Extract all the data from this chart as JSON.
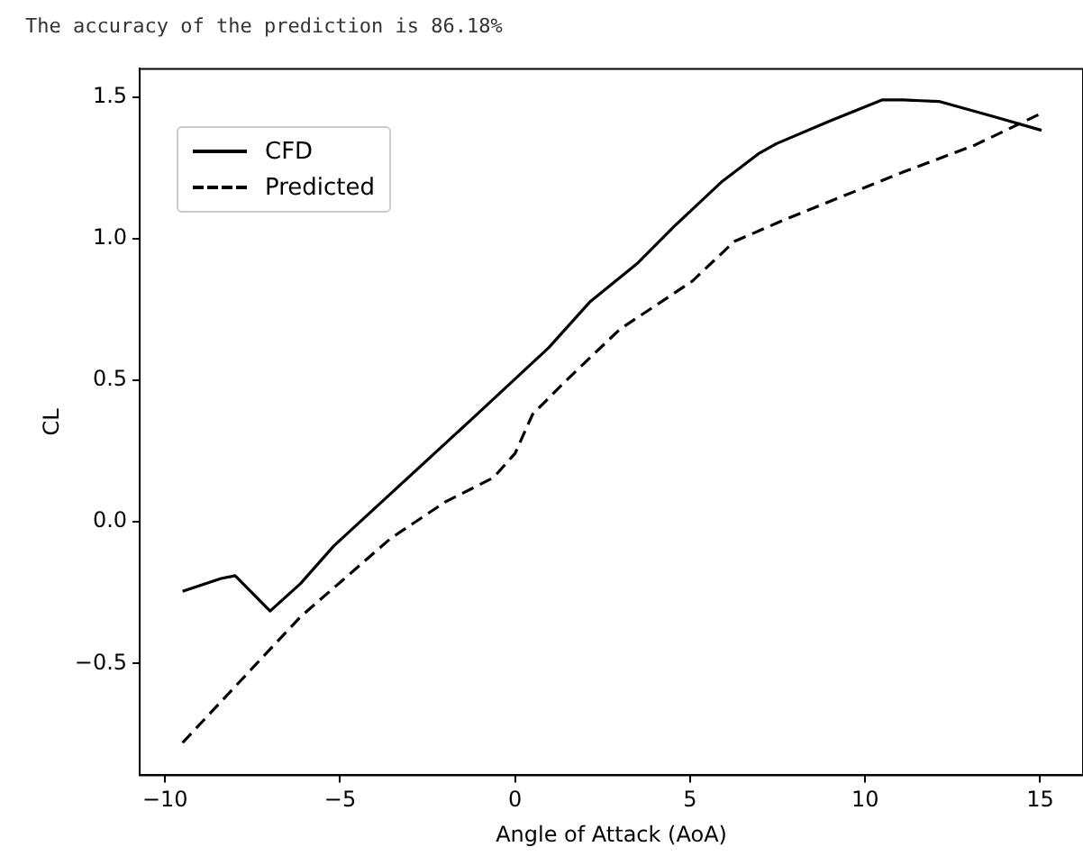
{
  "chart_data": {
    "type": "line",
    "annotations": [
      "The accuracy of the prediction is 86.18%"
    ],
    "xlabel": "Angle of Attack (AoA)",
    "ylabel": "CL",
    "xlim": [
      -10.725,
      16.225
    ],
    "xticks": [
      -10,
      -5,
      0,
      5,
      10,
      15
    ],
    "ylim": [
      -0.895,
      1.6
    ],
    "yticks": [
      -0.5,
      {
        "value": 0,
        "label": "0.0"
      },
      0.5,
      {
        "value": 1,
        "label": "1.0"
      },
      1.5
    ],
    "grid": false,
    "legend": "top left",
    "series": [
      {
        "name": "CFD",
        "color": "#000000",
        "line_style": "solid",
        "x": [
          -9.5,
          -8.4,
          -8,
          -7,
          -6.13,
          -5.18,
          -1.14,
          0.96,
          2.13,
          3.51,
          4.54,
          5.92,
          6.95,
          7.47,
          9.01,
          10.48,
          11.1,
          12.11,
          13.66,
          15.04
        ],
        "values": [
          -0.245,
          -0.2,
          -0.19,
          -0.315,
          -0.218,
          -0.085,
          0.374,
          0.615,
          0.776,
          0.915,
          1.043,
          1.203,
          1.3,
          1.336,
          1.417,
          1.49,
          1.49,
          1.485,
          1.432,
          1.383
        ]
      },
      {
        "name": "Predicted",
        "color": "#000000",
        "line_style": "dashed",
        "x": [
          -9.5,
          -6.13,
          -3.55,
          -2,
          -0.62,
          0,
          0.5,
          1.45,
          2.99,
          5.06,
          6.26,
          7.64,
          9.36,
          11.08,
          13.14,
          14.95
        ],
        "values": [
          -0.78,
          -0.335,
          -0.058,
          0.07,
          0.156,
          0.242,
          0.38,
          0.498,
          0.68,
          0.85,
          0.99,
          1.064,
          1.15,
          1.235,
          1.331,
          1.438
        ]
      }
    ]
  }
}
